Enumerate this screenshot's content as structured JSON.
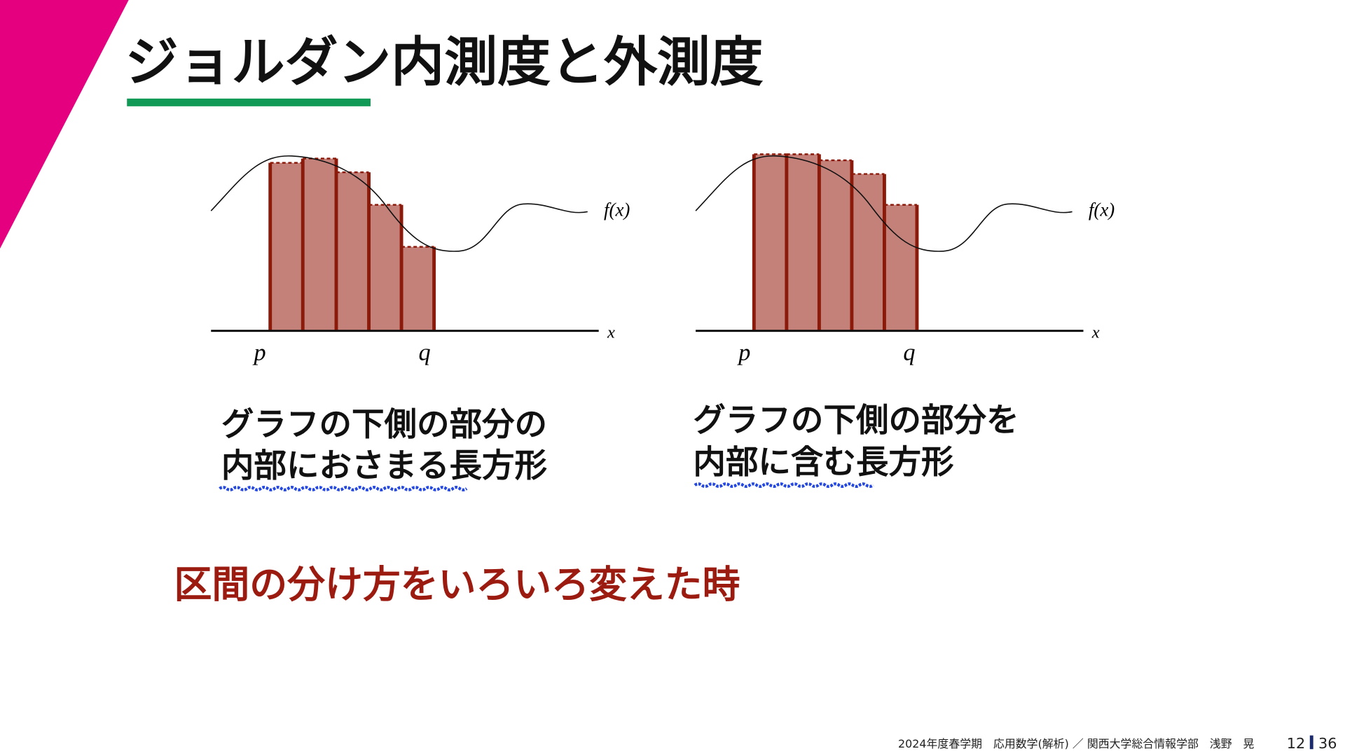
{
  "header": {
    "title": "ジョルダン内測度と外測度"
  },
  "figures": [
    {
      "function_label": "f(x)",
      "axis_label": "x",
      "interval_start": "p",
      "interval_end": "q",
      "caption_lines": [
        "グラフの下側の部分の",
        "内部におさまる長方形"
      ]
    },
    {
      "function_label": "f(x)",
      "axis_label": "x",
      "interval_start": "p",
      "interval_end": "q",
      "caption_lines": [
        "グラフの下側の部分を",
        "内部に含む長方形"
      ]
    }
  ],
  "note": "区間の分け方をいろいろ変えた時",
  "footer": {
    "course": "2024年度春学期　応用数学(解析) ／ 関西大学総合情報学部　浅野　晃",
    "page": "12",
    "total": "36"
  }
}
